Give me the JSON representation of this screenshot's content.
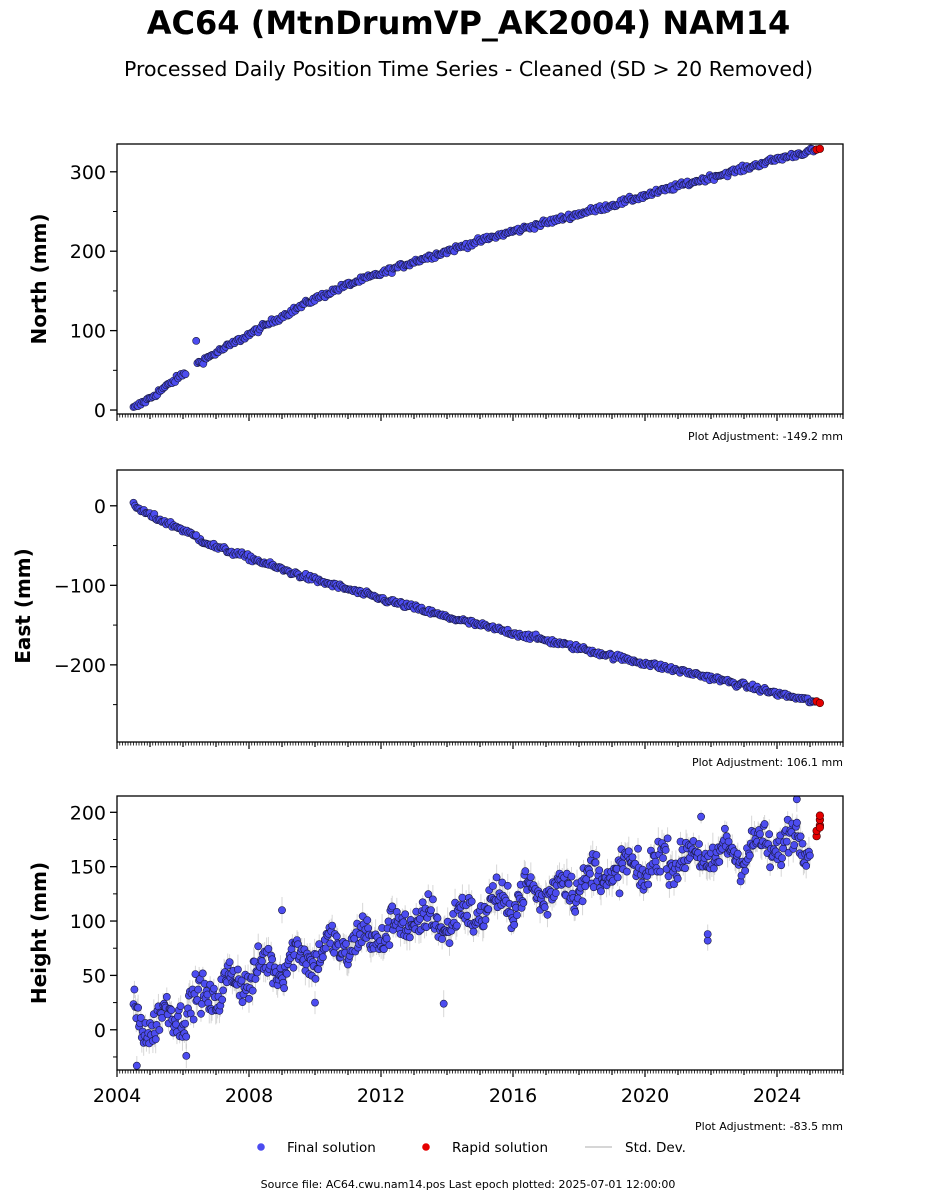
{
  "header": {
    "title": "AC64 (MtnDrumVP_AK2004) NAM14",
    "subtitle": "Processed Daily Position Time Series - Cleaned (SD > 20 Removed)"
  },
  "footer": {
    "source": "Source file: AC64.cwu.nam14.pos  Last epoch plotted: 2025-07-01 12:00:00"
  },
  "colors": {
    "final": "#4c4cf0",
    "rapid": "#e50000",
    "stddev": "#bdbdbd"
  },
  "chart_data": {
    "type": "scatter",
    "x_axis": {
      "xlim": [
        2004.0,
        2026.0
      ],
      "major_ticks": [
        2004,
        2008,
        2012,
        2016,
        2020,
        2024
      ],
      "tick_labels": [
        "2004",
        "2008",
        "2012",
        "2016",
        "2020",
        "2024"
      ]
    },
    "legend": {
      "placement": "bottom-center",
      "entries": [
        "Final solution",
        "Rapid solution",
        "Std. Dev."
      ]
    },
    "panels": [
      {
        "key": "north",
        "ylabel": "North (mm)",
        "ylim": [
          -5,
          335
        ],
        "yticks": [
          0,
          100,
          200,
          300
        ],
        "ytick_labels": [
          "0",
          "100",
          "200",
          "300"
        ],
        "adjustment": "Plot Adjustment: -149.2 mm",
        "trend_x": [
          2004.5,
          2005.0,
          2006.0,
          2006.5,
          2007.0,
          2008.0,
          2009.0,
          2010.0,
          2011.0,
          2012.0,
          2013.0,
          2014.0,
          2015.0,
          2016.0,
          2017.0,
          2018.0,
          2019.0,
          2020.0,
          2021.0,
          2022.0,
          2023.0,
          2024.0,
          2025.2
        ],
        "trend_y": [
          2,
          15,
          45,
          60,
          72,
          95,
          118,
          140,
          158,
          172,
          187,
          200,
          213,
          225,
          236,
          247,
          258,
          270,
          282,
          293,
          304,
          316,
          328
        ],
        "noise": 2.5,
        "outliers": [
          [
            2006.4,
            87
          ]
        ],
        "rapid_x": [
          2025.2,
          2025.3
        ],
        "rapid_y": [
          328,
          329
        ]
      },
      {
        "key": "east",
        "ylabel": "East (mm)",
        "ylim": [
          -297,
          45
        ],
        "yticks": [
          -200,
          -100,
          0
        ],
        "ytick_labels": [
          "−200",
          "−100",
          "0"
        ],
        "adjustment": "Plot Adjustment: 106.1 mm",
        "trend_x": [
          2004.5,
          2005.0,
          2006.0,
          2006.5,
          2007.0,
          2008.0,
          2009.0,
          2010.0,
          2011.0,
          2012.0,
          2013.0,
          2014.0,
          2015.0,
          2016.0,
          2017.0,
          2018.0,
          2019.0,
          2020.0,
          2021.0,
          2022.0,
          2023.0,
          2024.0,
          2025.2
        ],
        "trend_y": [
          0,
          -12,
          -30,
          -42,
          -52,
          -65,
          -80,
          -93,
          -105,
          -117,
          -128,
          -140,
          -150,
          -160,
          -169,
          -179,
          -189,
          -198,
          -207,
          -216,
          -226,
          -236,
          -247
        ],
        "noise": 2.5,
        "outliers": [
          [
            2006.4,
            -37
          ]
        ],
        "rapid_x": [
          2025.2,
          2025.3
        ],
        "rapid_y": [
          -246,
          -248
        ]
      },
      {
        "key": "height",
        "ylabel": "Height (mm)",
        "ylim": [
          -37,
          215
        ],
        "yticks": [
          0,
          50,
          100,
          150,
          200
        ],
        "ytick_labels": [
          "0",
          "50",
          "100",
          "150",
          "200"
        ],
        "adjustment": "Plot Adjustment: -83.5 mm",
        "trend_x": [
          2004.5,
          2005.0,
          2006.0,
          2007.0,
          2008.0,
          2009.0,
          2010.0,
          2011.0,
          2012.0,
          2013.0,
          2014.0,
          2015.0,
          2016.0,
          2017.0,
          2018.0,
          2019.0,
          2020.0,
          2021.0,
          2022.0,
          2023.0,
          2024.0,
          2025.0
        ],
        "trend_y": [
          10,
          5,
          18,
          35,
          50,
          62,
          70,
          78,
          88,
          100,
          98,
          110,
          120,
          128,
          135,
          145,
          148,
          160,
          158,
          165,
          170,
          178
        ],
        "noise": 12,
        "outliers": [
          [
            2004.6,
            -33
          ],
          [
            2013.9,
            24
          ],
          [
            2021.9,
            82
          ],
          [
            2021.9,
            88
          ],
          [
            2021.7,
            196
          ],
          [
            2009.0,
            110
          ],
          [
            2024.6,
            212
          ],
          [
            2010.0,
            25
          ],
          [
            2006.1,
            -24
          ]
        ],
        "rapid_x": [
          2025.2,
          2025.2,
          2025.3,
          2025.3,
          2025.3,
          2025.3
        ],
        "rapid_y": [
          178,
          183,
          188,
          193,
          197,
          186
        ]
      }
    ]
  }
}
